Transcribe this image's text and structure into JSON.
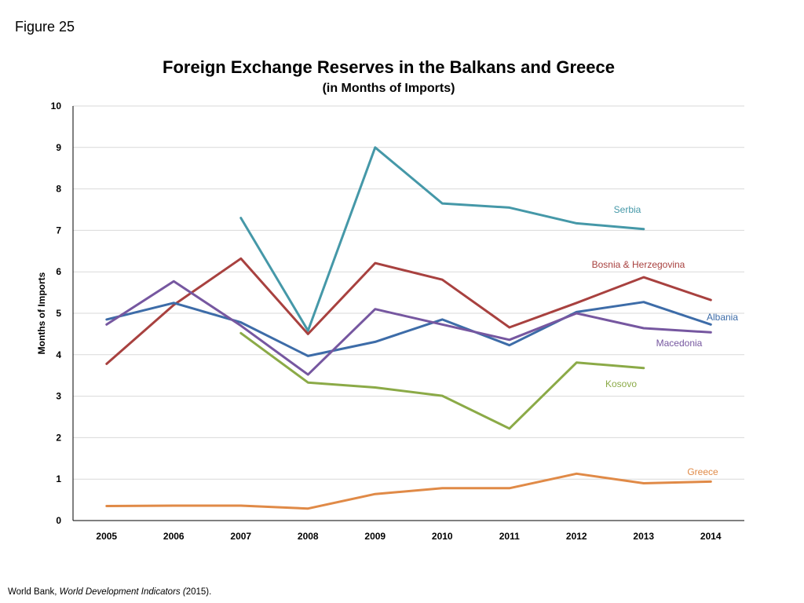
{
  "figure_label": "Figure 25",
  "source": {
    "prefix": "World Bank, ",
    "italic": "World Development Indicators (",
    "suffix": "2015)."
  },
  "chart_data": {
    "type": "line",
    "title": "Foreign Exchange Reserves in the Balkans and Greece",
    "subtitle": "(in Months of Imports)",
    "xlabel": "",
    "ylabel": "Months of Imports",
    "x": [
      "2005",
      "2006",
      "2007",
      "2008",
      "2009",
      "2010",
      "2011",
      "2012",
      "2013",
      "2014"
    ],
    "ylim": [
      0,
      10
    ],
    "yticks": [
      0,
      1,
      2,
      3,
      4,
      5,
      6,
      7,
      8,
      9,
      10
    ],
    "grid": true,
    "legend": "inline labels at line ends",
    "series": [
      {
        "name": "Serbia",
        "color": "#4598A8",
        "values": [
          null,
          null,
          7.3,
          4.58,
          9.0,
          7.65,
          7.55,
          7.17,
          7.03,
          null
        ]
      },
      {
        "name": "Bosnia  & Herzegovina",
        "color": "#A8413F",
        "values": [
          3.78,
          5.2,
          6.32,
          4.5,
          6.21,
          5.81,
          4.66,
          5.25,
          5.87,
          5.32
        ]
      },
      {
        "name": "Albania",
        "color": "#3D6CA8",
        "values": [
          4.85,
          5.25,
          4.78,
          3.97,
          4.31,
          4.85,
          4.23,
          5.03,
          5.27,
          4.73
        ]
      },
      {
        "name": "Macedonia",
        "color": "#7657A0",
        "values": [
          4.73,
          5.77,
          4.7,
          3.52,
          5.1,
          4.73,
          4.36,
          5.0,
          4.64,
          4.54
        ]
      },
      {
        "name": "Kosovo",
        "color": "#8BAA47",
        "values": [
          null,
          null,
          4.52,
          3.33,
          3.21,
          3.01,
          2.22,
          3.81,
          3.68,
          null
        ]
      },
      {
        "name": "Greece",
        "color": "#E08A47",
        "values": [
          0.35,
          0.36,
          0.36,
          0.29,
          0.64,
          0.78,
          0.78,
          1.13,
          0.9,
          0.94
        ]
      }
    ]
  }
}
